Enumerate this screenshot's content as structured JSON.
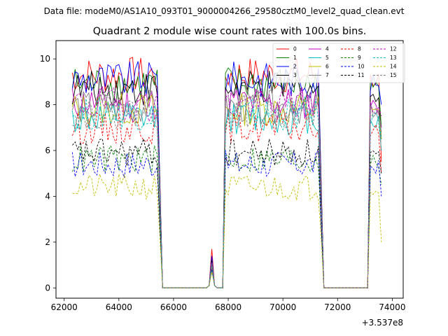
{
  "chart_data": {
    "type": "line",
    "suptitle": "Data file: modeM0/AS1A10_093T01_9000004266_29580cztM0_level2_quad_clean.evt",
    "title": "Quadrant 2 module wise count rates with 100.0s bins.",
    "xlabel": "",
    "ylabel": "",
    "x_offset_label": "+3.537e8",
    "xlim": [
      61700,
      74400
    ],
    "ylim": [
      -0.45,
      10.8
    ],
    "xticks": [
      62000,
      64000,
      66000,
      68000,
      70000,
      72000,
      74000
    ],
    "xtick_labels": [
      "62000",
      "64000",
      "66000",
      "68000",
      "70000",
      "72000",
      "74000"
    ],
    "yticks": [
      0,
      2,
      4,
      6,
      8,
      10
    ],
    "ytick_labels": [
      "0",
      "2",
      "4",
      "6",
      "8",
      "10"
    ],
    "legend_position": "top-right",
    "legend_columns": 4,
    "bin_seconds": 100,
    "time_segments": [
      {
        "start": 62300,
        "end": 65500
      },
      {
        "start": 65600,
        "end": 67200,
        "zero": true
      },
      {
        "start": 67300,
        "end": 67500,
        "spike": true
      },
      {
        "start": 67600,
        "end": 67800,
        "zero": true
      },
      {
        "start": 67900,
        "end": 71400
      },
      {
        "start": 71500,
        "end": 73100,
        "zero": true
      },
      {
        "start": 73200,
        "end": 73600
      }
    ],
    "series": [
      {
        "name": "0",
        "color": "#ff0000",
        "dash": false,
        "level": 9.3,
        "spike": 1.7,
        "end": 5.5
      },
      {
        "name": "1",
        "color": "#008000",
        "dash": false,
        "level": 8.9,
        "spike": 1.3,
        "end": 7.0
      },
      {
        "name": "2",
        "color": "#0000ff",
        "dash": false,
        "level": 9.1,
        "spike": 1.4,
        "end": 8.0
      },
      {
        "name": "3",
        "color": "#000000",
        "dash": false,
        "level": 8.7,
        "spike": 1.2,
        "end": 6.5
      },
      {
        "name": "4",
        "color": "#bf00bf",
        "dash": false,
        "level": 8.1,
        "spike": 1.1,
        "end": 7.0
      },
      {
        "name": "5",
        "color": "#00bfbf",
        "dash": false,
        "level": 7.4,
        "spike": 1.0,
        "end": 6.0
      },
      {
        "name": "6",
        "color": "#bfbf00",
        "dash": false,
        "level": 7.8,
        "spike": 1.1,
        "end": 6.5
      },
      {
        "name": "7",
        "color": "#808080",
        "dash": false,
        "level": 7.9,
        "spike": 1.1,
        "end": 6.8
      },
      {
        "name": "8",
        "color": "#ff0000",
        "dash": true,
        "level": 7.0,
        "spike": 0.9,
        "end": 5.0
      },
      {
        "name": "9",
        "color": "#008000",
        "dash": true,
        "level": 5.6,
        "spike": 0.8,
        "end": 4.5
      },
      {
        "name": "10",
        "color": "#0000ff",
        "dash": true,
        "level": 5.4,
        "spike": 0.8,
        "end": 4.0
      },
      {
        "name": "11",
        "color": "#000000",
        "dash": true,
        "level": 5.9,
        "spike": 0.9,
        "end": 5.0
      },
      {
        "name": "12",
        "color": "#bf00bf",
        "dash": true,
        "level": 8.0,
        "spike": 1.1,
        "end": 7.5
      },
      {
        "name": "13",
        "color": "#00bfbf",
        "dash": true,
        "level": 7.6,
        "spike": 1.0,
        "end": 6.5
      },
      {
        "name": "14",
        "color": "#bfbf00",
        "dash": true,
        "level": 4.4,
        "spike": 0.7,
        "end": 2.0
      },
      {
        "name": "15",
        "color": "#808080",
        "dash": true,
        "level": 7.7,
        "spike": 1.0,
        "end": 6.0
      }
    ]
  }
}
